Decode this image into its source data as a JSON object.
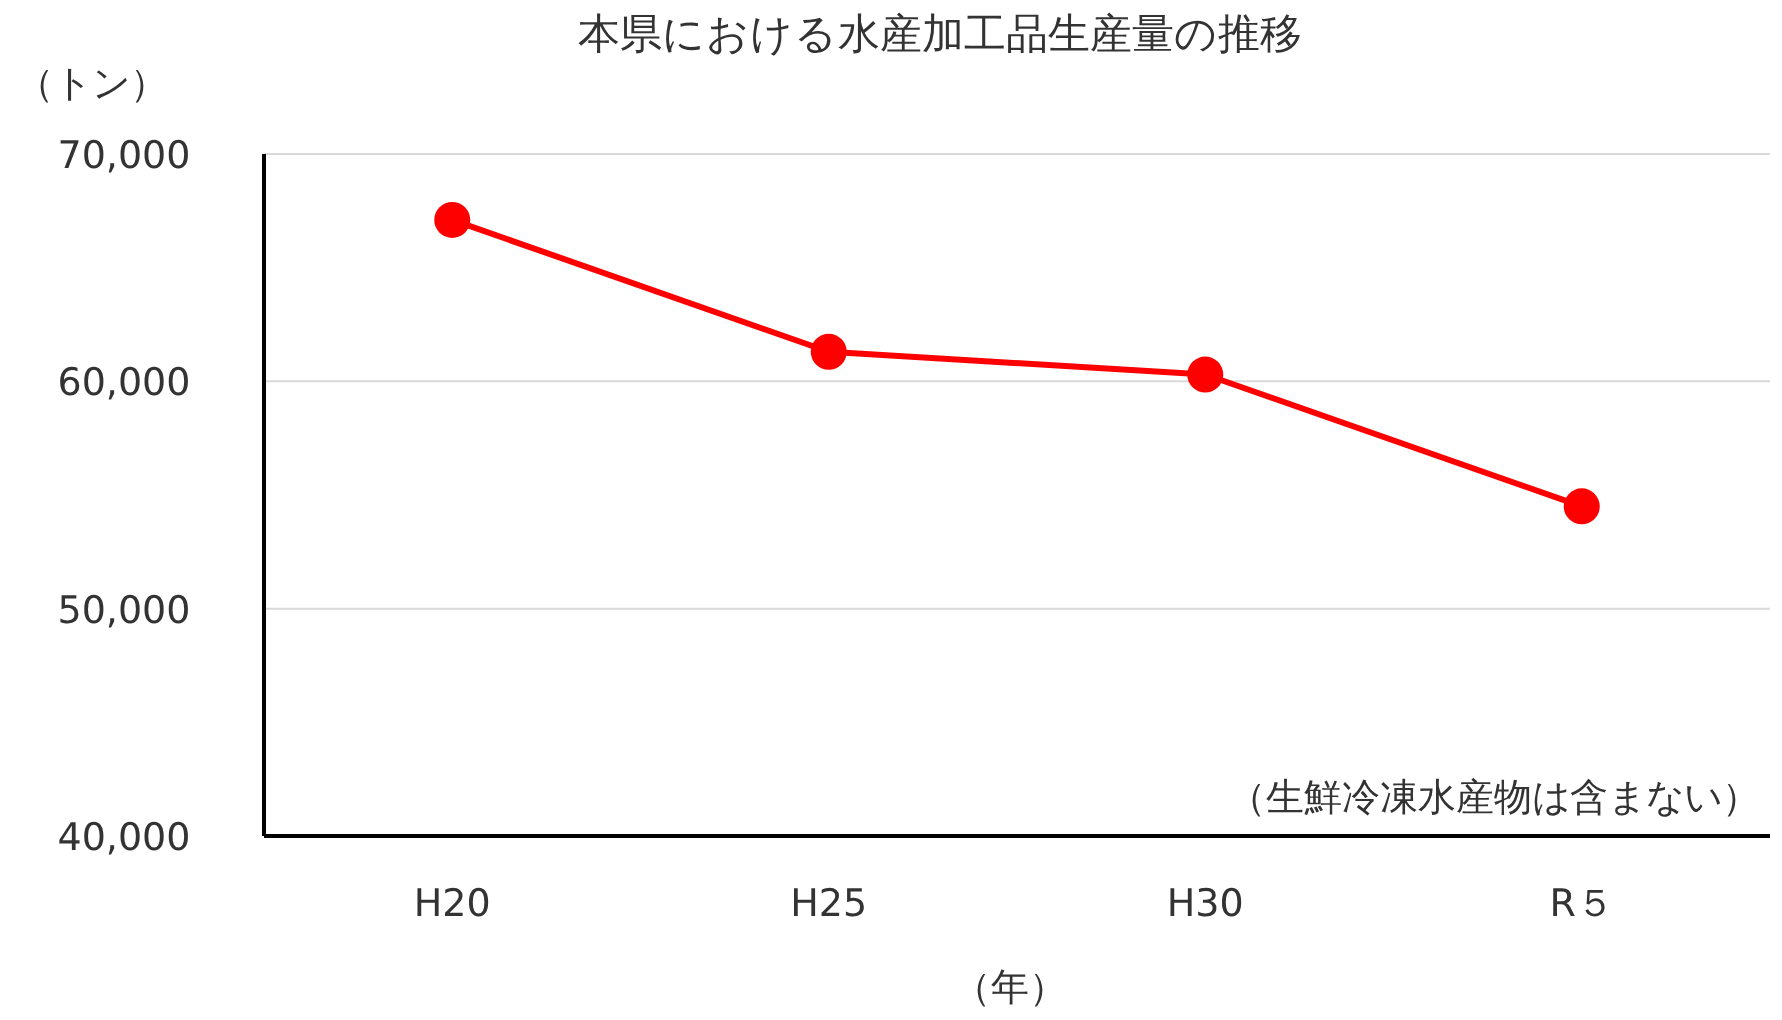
{
  "chart_data": {
    "type": "line",
    "title": "本県における水産加工品生産量の推移",
    "ylabel": "（トン）",
    "xlabel": "（年）",
    "categories": [
      "H20",
      "H25",
      "H30",
      "R５"
    ],
    "series": [
      {
        "color": "#ff0000",
        "values": [
          67100,
          61300,
          60300,
          54500
        ]
      }
    ],
    "ylim": [
      40000,
      70000
    ],
    "yticks": [
      {
        "value": 40000,
        "label": "40,000"
      },
      {
        "value": 50000,
        "label": "50,000"
      },
      {
        "value": 60000,
        "label": "60,000"
      },
      {
        "value": 70000,
        "label": "70,000"
      }
    ],
    "grid": "y",
    "marker": "circle",
    "line_style": "solid",
    "annotations": [
      "（生鮮冷凍水産物は含まない）"
    ]
  }
}
